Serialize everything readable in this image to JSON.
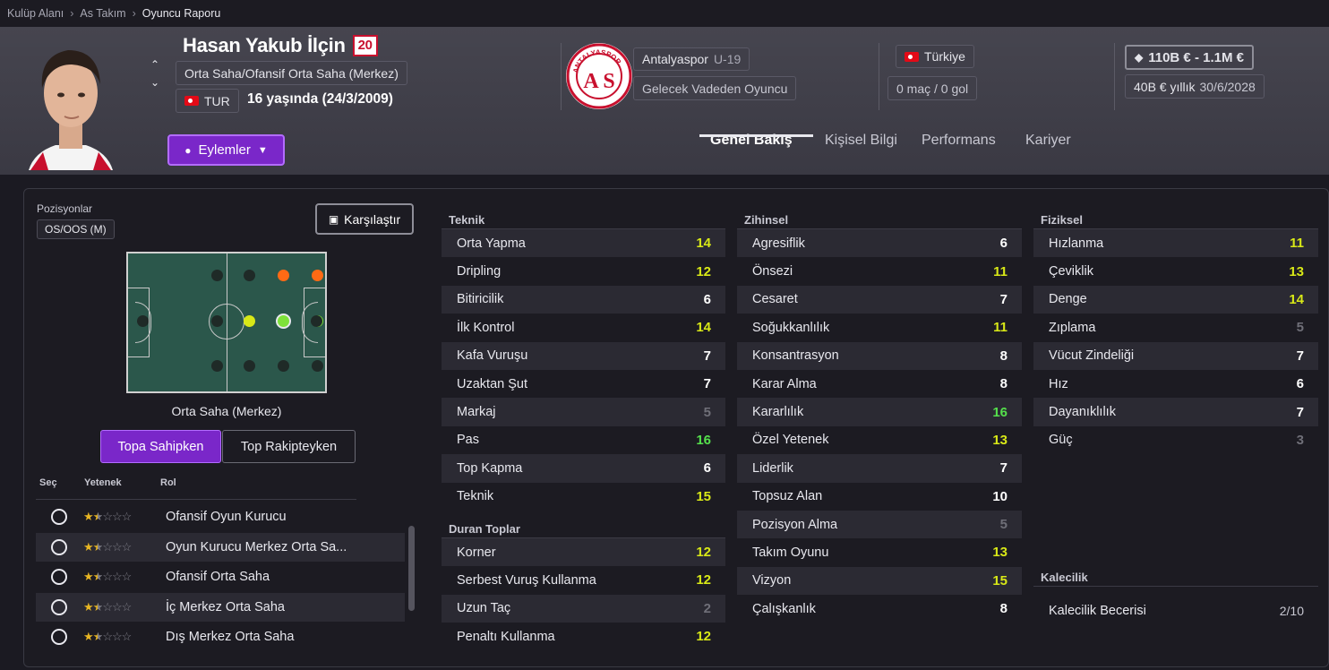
{
  "breadcrumb": {
    "items": [
      "Kulüp Alanı",
      "As Takım"
    ],
    "current": "Oyuncu Raporu"
  },
  "player": {
    "name": "Hasan Yakub İlçin",
    "number": "20",
    "positions": "Orta Saha/Ofansif Orta Saha (Merkez)",
    "nation_code": "TUR",
    "age": "16 yaşında (24/3/2009)",
    "actions_label": "Eylemler"
  },
  "club": {
    "name": "Antalyaspor",
    "team": "U-19",
    "status": "Gelecek Vadeden Oyuncu",
    "logo_text": "ANTALYASPOR",
    "logo_letters": "A S"
  },
  "national": {
    "country": "Türkiye",
    "caps": "0 maç / 0 gol"
  },
  "value": {
    "range": "110B € - 1.1M €",
    "wage": "40B € yıllık",
    "contract_end": "30/6/2028"
  },
  "tabs": [
    "Genel Bakış",
    "Kişisel Bilgi",
    "Performans",
    "Kariyer"
  ],
  "left": {
    "positions_label": "Pozisyonlar",
    "position_badge": "OS/OOS (M)",
    "compare_label": "Karşılaştır",
    "selected_position": "Orta Saha (Merkez)",
    "role_toggle": [
      "Topa Sahipken",
      "Top Rakipteyken"
    ],
    "role_headers": [
      "Seç",
      "Yetenek",
      "Rol"
    ],
    "roles": [
      {
        "name": "Ofansif Oyun Kurucu",
        "stars": 1.5
      },
      {
        "name": "Oyun Kurucu Merkez Orta Sa...",
        "stars": 1.5
      },
      {
        "name": "Ofansif Orta Saha",
        "stars": 1.5
      },
      {
        "name": "İç Merkez Orta Saha",
        "stars": 1.5
      },
      {
        "name": "Dış Merkez Orta Saha",
        "stars": 1.5
      }
    ],
    "colors": {
      "high": "#ff6a14",
      "good": "#7ee23a",
      "mid": "#d8e817",
      "none": "#1f2a27"
    }
  },
  "attributes": {
    "teknik": {
      "title": "Teknik",
      "items": [
        [
          "Orta Yapma",
          "14"
        ],
        [
          "Dripling",
          "12"
        ],
        [
          "Bitiricilik",
          "6"
        ],
        [
          "İlk Kontrol",
          "14"
        ],
        [
          "Kafa Vuruşu",
          "7"
        ],
        [
          "Uzaktan Şut",
          "7"
        ],
        [
          "Markaj",
          "5"
        ],
        [
          "Pas",
          "16"
        ],
        [
          "Top Kapma",
          "6"
        ],
        [
          "Teknik",
          "15"
        ]
      ]
    },
    "duran": {
      "title": "Duran Toplar",
      "items": [
        [
          "Korner",
          "12"
        ],
        [
          "Serbest Vuruş Kullanma",
          "12"
        ],
        [
          "Uzun Taç",
          "2"
        ],
        [
          "Penaltı Kullanma",
          "12"
        ]
      ]
    },
    "zihinsel": {
      "title": "Zihinsel",
      "items": [
        [
          "Agresiflik",
          "6"
        ],
        [
          "Önsezi",
          "11"
        ],
        [
          "Cesaret",
          "7"
        ],
        [
          "Soğukkanlılık",
          "11"
        ],
        [
          "Konsantrasyon",
          "8"
        ],
        [
          "Karar Alma",
          "8"
        ],
        [
          "Kararlılık",
          "16"
        ],
        [
          "Özel Yetenek",
          "13"
        ],
        [
          "Liderlik",
          "7"
        ],
        [
          "Topsuz Alan",
          "10"
        ],
        [
          "Pozisyon Alma",
          "5"
        ],
        [
          "Takım Oyunu",
          "13"
        ],
        [
          "Vizyon",
          "15"
        ],
        [
          "Çalışkanlık",
          "8"
        ]
      ]
    },
    "fiziksel": {
      "title": "Fiziksel",
      "items": [
        [
          "Hızlanma",
          "11"
        ],
        [
          "Çeviklik",
          "13"
        ],
        [
          "Denge",
          "14"
        ],
        [
          "Zıplama",
          "5"
        ],
        [
          "Vücut Zindeliği",
          "7"
        ],
        [
          "Hız",
          "6"
        ],
        [
          "Dayanıklılık",
          "7"
        ],
        [
          "Güç",
          "3"
        ]
      ]
    },
    "kalecilik": {
      "title": "Kalecilik",
      "items": [
        [
          "Kalecilik Becerisi",
          "2/10"
        ]
      ]
    }
  }
}
